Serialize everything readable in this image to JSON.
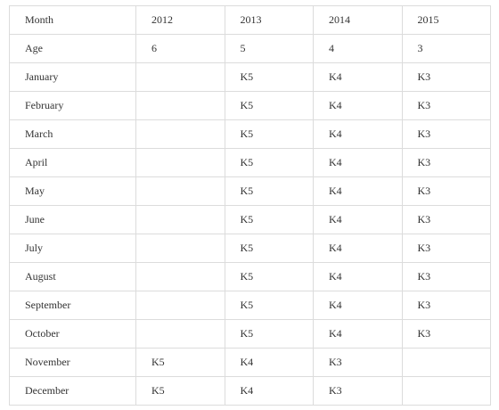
{
  "header": [
    "Month",
    "2012",
    "2013",
    "2014",
    "2015"
  ],
  "rows": [
    [
      "Age",
      "6",
      "5",
      "4",
      "3"
    ],
    [
      "January",
      "",
      "K5",
      "K4",
      "K3"
    ],
    [
      "February",
      "",
      "K5",
      "K4",
      "K3"
    ],
    [
      "March",
      "",
      "K5",
      "K4",
      "K3"
    ],
    [
      "April",
      "",
      "K5",
      "K4",
      "K3"
    ],
    [
      "May",
      "",
      "K5",
      "K4",
      "K3"
    ],
    [
      "June",
      "",
      "K5",
      "K4",
      "K3"
    ],
    [
      "July",
      "",
      "K5",
      "K4",
      "K3"
    ],
    [
      "August",
      "",
      "K5",
      "K4",
      "K3"
    ],
    [
      "September",
      "",
      "K5",
      "K4",
      "K3"
    ],
    [
      "October",
      "",
      "K5",
      "K4",
      "K3"
    ],
    [
      "November",
      "K5",
      "K4",
      "K3",
      ""
    ],
    [
      "December",
      "K5",
      "K4",
      "K3",
      ""
    ]
  ]
}
